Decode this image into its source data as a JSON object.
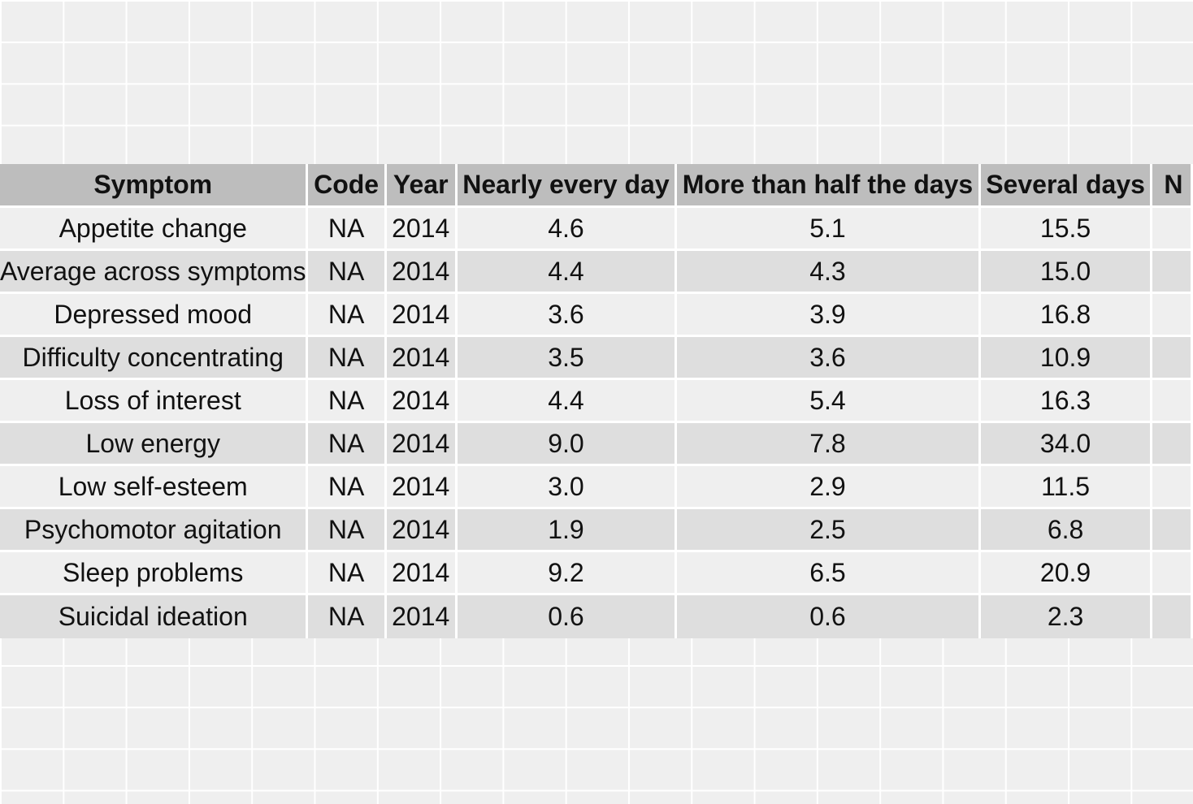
{
  "chart_data": {
    "type": "table",
    "columns": [
      "Symptom",
      "Code",
      "Year",
      "Nearly every day",
      "More than half the days",
      "Several days",
      "N"
    ],
    "rows": [
      {
        "symptom": "Appetite change",
        "code": "NA",
        "year": "2014",
        "nearly_every_day": "4.6",
        "more_than_half": "5.1",
        "several_days": "15.5",
        "extra": ""
      },
      {
        "symptom": "Average across symptoms",
        "code": "NA",
        "year": "2014",
        "nearly_every_day": "4.4",
        "more_than_half": "4.3",
        "several_days": "15.0",
        "extra": ""
      },
      {
        "symptom": "Depressed mood",
        "code": "NA",
        "year": "2014",
        "nearly_every_day": "3.6",
        "more_than_half": "3.9",
        "several_days": "16.8",
        "extra": ""
      },
      {
        "symptom": "Difficulty concentrating",
        "code": "NA",
        "year": "2014",
        "nearly_every_day": "3.5",
        "more_than_half": "3.6",
        "several_days": "10.9",
        "extra": ""
      },
      {
        "symptom": "Loss of interest",
        "code": "NA",
        "year": "2014",
        "nearly_every_day": "4.4",
        "more_than_half": "5.4",
        "several_days": "16.3",
        "extra": ""
      },
      {
        "symptom": "Low energy",
        "code": "NA",
        "year": "2014",
        "nearly_every_day": "9.0",
        "more_than_half": "7.8",
        "several_days": "34.0",
        "extra": ""
      },
      {
        "symptom": "Low self-esteem",
        "code": "NA",
        "year": "2014",
        "nearly_every_day": "3.0",
        "more_than_half": "2.9",
        "several_days": "11.5",
        "extra": ""
      },
      {
        "symptom": "Psychomotor agitation",
        "code": "NA",
        "year": "2014",
        "nearly_every_day": "1.9",
        "more_than_half": "2.5",
        "several_days": "6.8",
        "extra": ""
      },
      {
        "symptom": "Sleep problems",
        "code": "NA",
        "year": "2014",
        "nearly_every_day": "9.2",
        "more_than_half": "6.5",
        "several_days": "20.9",
        "extra": ""
      },
      {
        "symptom": "Suicidal ideation",
        "code": "NA",
        "year": "2014",
        "nearly_every_day": "0.6",
        "more_than_half": "0.6",
        "several_days": "2.3",
        "extra": ""
      }
    ],
    "colors": {
      "background": "#efefef",
      "grid": "#ffffff",
      "header": "#bdbdbd",
      "row_light": "#efefef",
      "row_dark": "#dedede",
      "text": "#111111"
    }
  }
}
